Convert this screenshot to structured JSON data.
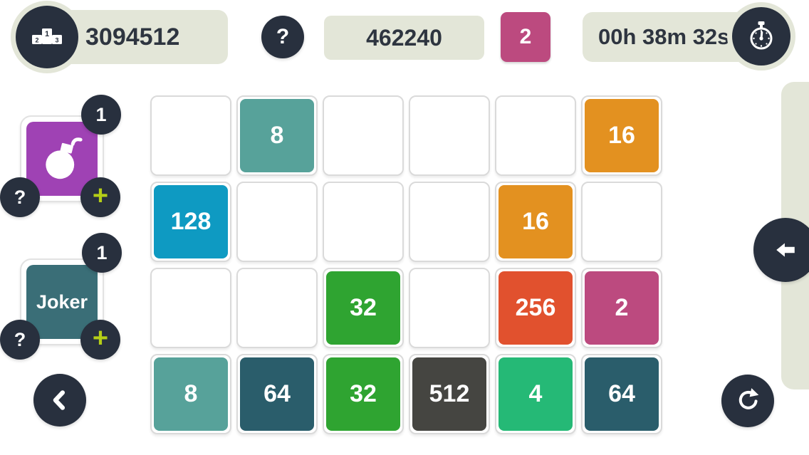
{
  "top_bar": {
    "best_score": "3094512",
    "help_label": "?",
    "score": "462240",
    "next_tile": "2",
    "timer": "00h 38m 32s"
  },
  "powerups": {
    "bomb": {
      "count": "1",
      "help_label": "?",
      "add_label": "+"
    },
    "joker": {
      "label": "Joker",
      "count": "1",
      "help_label": "?",
      "add_label": "+"
    }
  },
  "grid": {
    "rows": 4,
    "cols": 6,
    "tiles": [
      [
        null,
        8,
        null,
        null,
        null,
        16
      ],
      [
        128,
        null,
        null,
        null,
        16,
        null
      ],
      [
        null,
        null,
        32,
        null,
        256,
        2
      ],
      [
        8,
        64,
        32,
        512,
        4,
        64
      ]
    ]
  },
  "colors": {
    "dark_circle": "#28303E",
    "pill_sage": "#E3E6D8",
    "score_text": "#2E3540",
    "lime_plus": "#B5CE17",
    "bomb_purple": "#9F42B4",
    "joker_teal": "#3A6E77",
    "tile_colors": {
      "2": "#BC4A7F",
      "4": "#25B976",
      "8": "#57A29A",
      "16": "#E39120",
      "32": "#2FA431",
      "64": "#2A5D6B",
      "128": "#0E9AC2",
      "256": "#E1512E",
      "512": "#454541"
    }
  }
}
